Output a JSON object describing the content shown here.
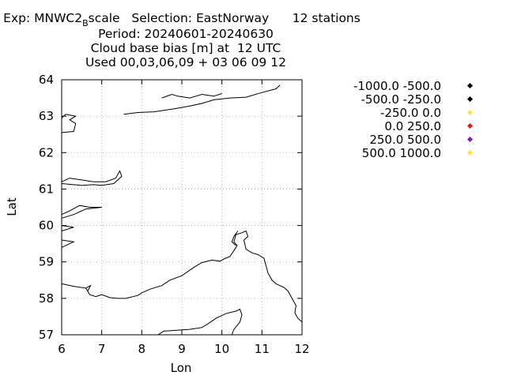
{
  "header": {
    "exp_prefix": "Exp: MNWC2",
    "exp_sub": "B",
    "exp_suffix": "scale",
    "selection": "Selection: EastNorway",
    "stations": "12 stations",
    "period": "Period: 20240601-20240630",
    "variable": "Cloud base bias [m] at  12 UTC",
    "used": "Used 00,03,06,09 + 03 06 09 12"
  },
  "chart_data": {
    "type": "scatter",
    "title": "",
    "xlabel": "Lon",
    "ylabel": "Lat",
    "xlim": [
      6,
      12
    ],
    "ylim": [
      57,
      64
    ],
    "xticks": [
      "6",
      "7",
      "8",
      "9",
      "10",
      "11",
      "12"
    ],
    "yticks": [
      "57",
      "58",
      "59",
      "60",
      "61",
      "62",
      "63",
      "64"
    ],
    "grid": true,
    "legend_position": "right",
    "legend": [
      {
        "label": "-1000.0 -500.0",
        "color": "#000000"
      },
      {
        "label": "-500.0 -250.0",
        "color": "#000000"
      },
      {
        "label": "-250.0 0.0",
        "color": "#ffe14a"
      },
      {
        "label": "0.0 250.0",
        "color": "#e01b1b"
      },
      {
        "label": "250.0 500.0",
        "color": "#7a1fbf"
      },
      {
        "label": "500.0 1000.0",
        "color": "#ffe14a"
      }
    ],
    "points": [],
    "coastlines": [
      [
        [
          6.0,
          58.4
        ],
        [
          6.3,
          58.33
        ],
        [
          6.6,
          58.28
        ],
        [
          6.65,
          58.2
        ],
        [
          6.72,
          58.35
        ],
        [
          6.6,
          58.28
        ]
      ],
      [
        [
          6.65,
          58.2
        ],
        [
          6.7,
          58.1
        ],
        [
          6.85,
          58.05
        ],
        [
          7.0,
          58.1
        ],
        [
          7.2,
          58.02
        ],
        [
          7.4,
          58.0
        ],
        [
          7.6,
          58.0
        ],
        [
          7.9,
          58.08
        ],
        [
          8.0,
          58.15
        ],
        [
          8.2,
          58.25
        ],
        [
          8.5,
          58.35
        ],
        [
          8.7,
          58.5
        ],
        [
          9.0,
          58.62
        ],
        [
          9.3,
          58.85
        ],
        [
          9.5,
          58.98
        ],
        [
          9.75,
          59.05
        ],
        [
          9.95,
          59.02
        ],
        [
          10.05,
          59.08
        ],
        [
          10.2,
          59.15
        ],
        [
          10.28,
          59.28
        ],
        [
          10.38,
          59.45
        ],
        [
          10.3,
          59.55
        ],
        [
          10.35,
          59.75
        ],
        [
          10.5,
          59.8
        ],
        [
          10.6,
          59.85
        ],
        [
          10.65,
          59.7
        ],
        [
          10.55,
          59.6
        ],
        [
          10.6,
          59.35
        ],
        [
          10.75,
          59.25
        ],
        [
          10.9,
          59.2
        ],
        [
          11.05,
          59.1
        ],
        [
          11.1,
          58.9
        ],
        [
          11.15,
          58.7
        ],
        [
          11.25,
          58.5
        ],
        [
          11.35,
          58.4
        ],
        [
          11.55,
          58.3
        ],
        [
          11.65,
          58.2
        ],
        [
          11.75,
          58.0
        ],
        [
          11.85,
          57.8
        ],
        [
          11.82,
          57.6
        ],
        [
          11.9,
          57.45
        ],
        [
          12.0,
          57.35
        ]
      ],
      [
        [
          10.4,
          59.85
        ],
        [
          10.3,
          59.7
        ],
        [
          10.25,
          59.55
        ],
        [
          10.35,
          59.45
        ]
      ],
      [
        [
          8.4,
          57.0
        ],
        [
          8.55,
          57.1
        ],
        [
          8.8,
          57.12
        ],
        [
          9.2,
          57.15
        ],
        [
          9.5,
          57.2
        ],
        [
          9.65,
          57.3
        ],
        [
          9.85,
          57.45
        ],
        [
          10.1,
          57.58
        ],
        [
          10.35,
          57.65
        ],
        [
          10.45,
          57.7
        ],
        [
          10.5,
          57.55
        ],
        [
          10.45,
          57.35
        ],
        [
          10.3,
          57.15
        ],
        [
          10.25,
          57.0
        ]
      ],
      [
        [
          7.55,
          63.05
        ],
        [
          7.9,
          63.1
        ],
        [
          8.3,
          63.12
        ],
        [
          8.8,
          63.2
        ],
        [
          9.2,
          63.28
        ],
        [
          9.5,
          63.35
        ],
        [
          9.8,
          63.45
        ],
        [
          10.2,
          63.5
        ],
        [
          10.6,
          63.52
        ],
        [
          11.0,
          63.65
        ],
        [
          11.35,
          63.75
        ],
        [
          11.45,
          63.85
        ]
      ],
      [
        [
          8.5,
          63.5
        ],
        [
          8.75,
          63.6
        ],
        [
          8.9,
          63.55
        ],
        [
          9.2,
          63.5
        ],
        [
          9.5,
          63.6
        ],
        [
          9.8,
          63.55
        ],
        [
          10.0,
          63.62
        ]
      ],
      [
        [
          6.0,
          62.55
        ],
        [
          6.3,
          62.58
        ],
        [
          6.35,
          62.8
        ],
        [
          6.2,
          62.9
        ],
        [
          6.35,
          63.0
        ],
        [
          6.1,
          63.05
        ],
        [
          6.0,
          62.95
        ]
      ],
      [
        [
          6.0,
          61.15
        ],
        [
          6.5,
          61.1
        ],
        [
          6.8,
          61.12
        ],
        [
          7.0,
          61.1
        ],
        [
          7.3,
          61.15
        ],
        [
          7.5,
          61.35
        ],
        [
          7.45,
          61.5
        ],
        [
          7.35,
          61.3
        ],
        [
          7.1,
          61.2
        ],
        [
          6.8,
          61.2
        ],
        [
          6.5,
          61.25
        ],
        [
          6.2,
          61.3
        ],
        [
          6.0,
          61.2
        ]
      ],
      [
        [
          6.0,
          60.3
        ],
        [
          6.2,
          60.4
        ],
        [
          6.45,
          60.55
        ],
        [
          6.7,
          60.5
        ],
        [
          7.0,
          60.5
        ],
        [
          6.6,
          60.45
        ],
        [
          6.3,
          60.3
        ],
        [
          6.0,
          60.2
        ]
      ],
      [
        [
          6.0,
          59.85
        ],
        [
          6.3,
          59.95
        ],
        [
          6.0,
          60.0
        ]
      ],
      [
        [
          6.0,
          59.4
        ],
        [
          6.3,
          59.55
        ],
        [
          6.0,
          59.6
        ]
      ]
    ]
  }
}
